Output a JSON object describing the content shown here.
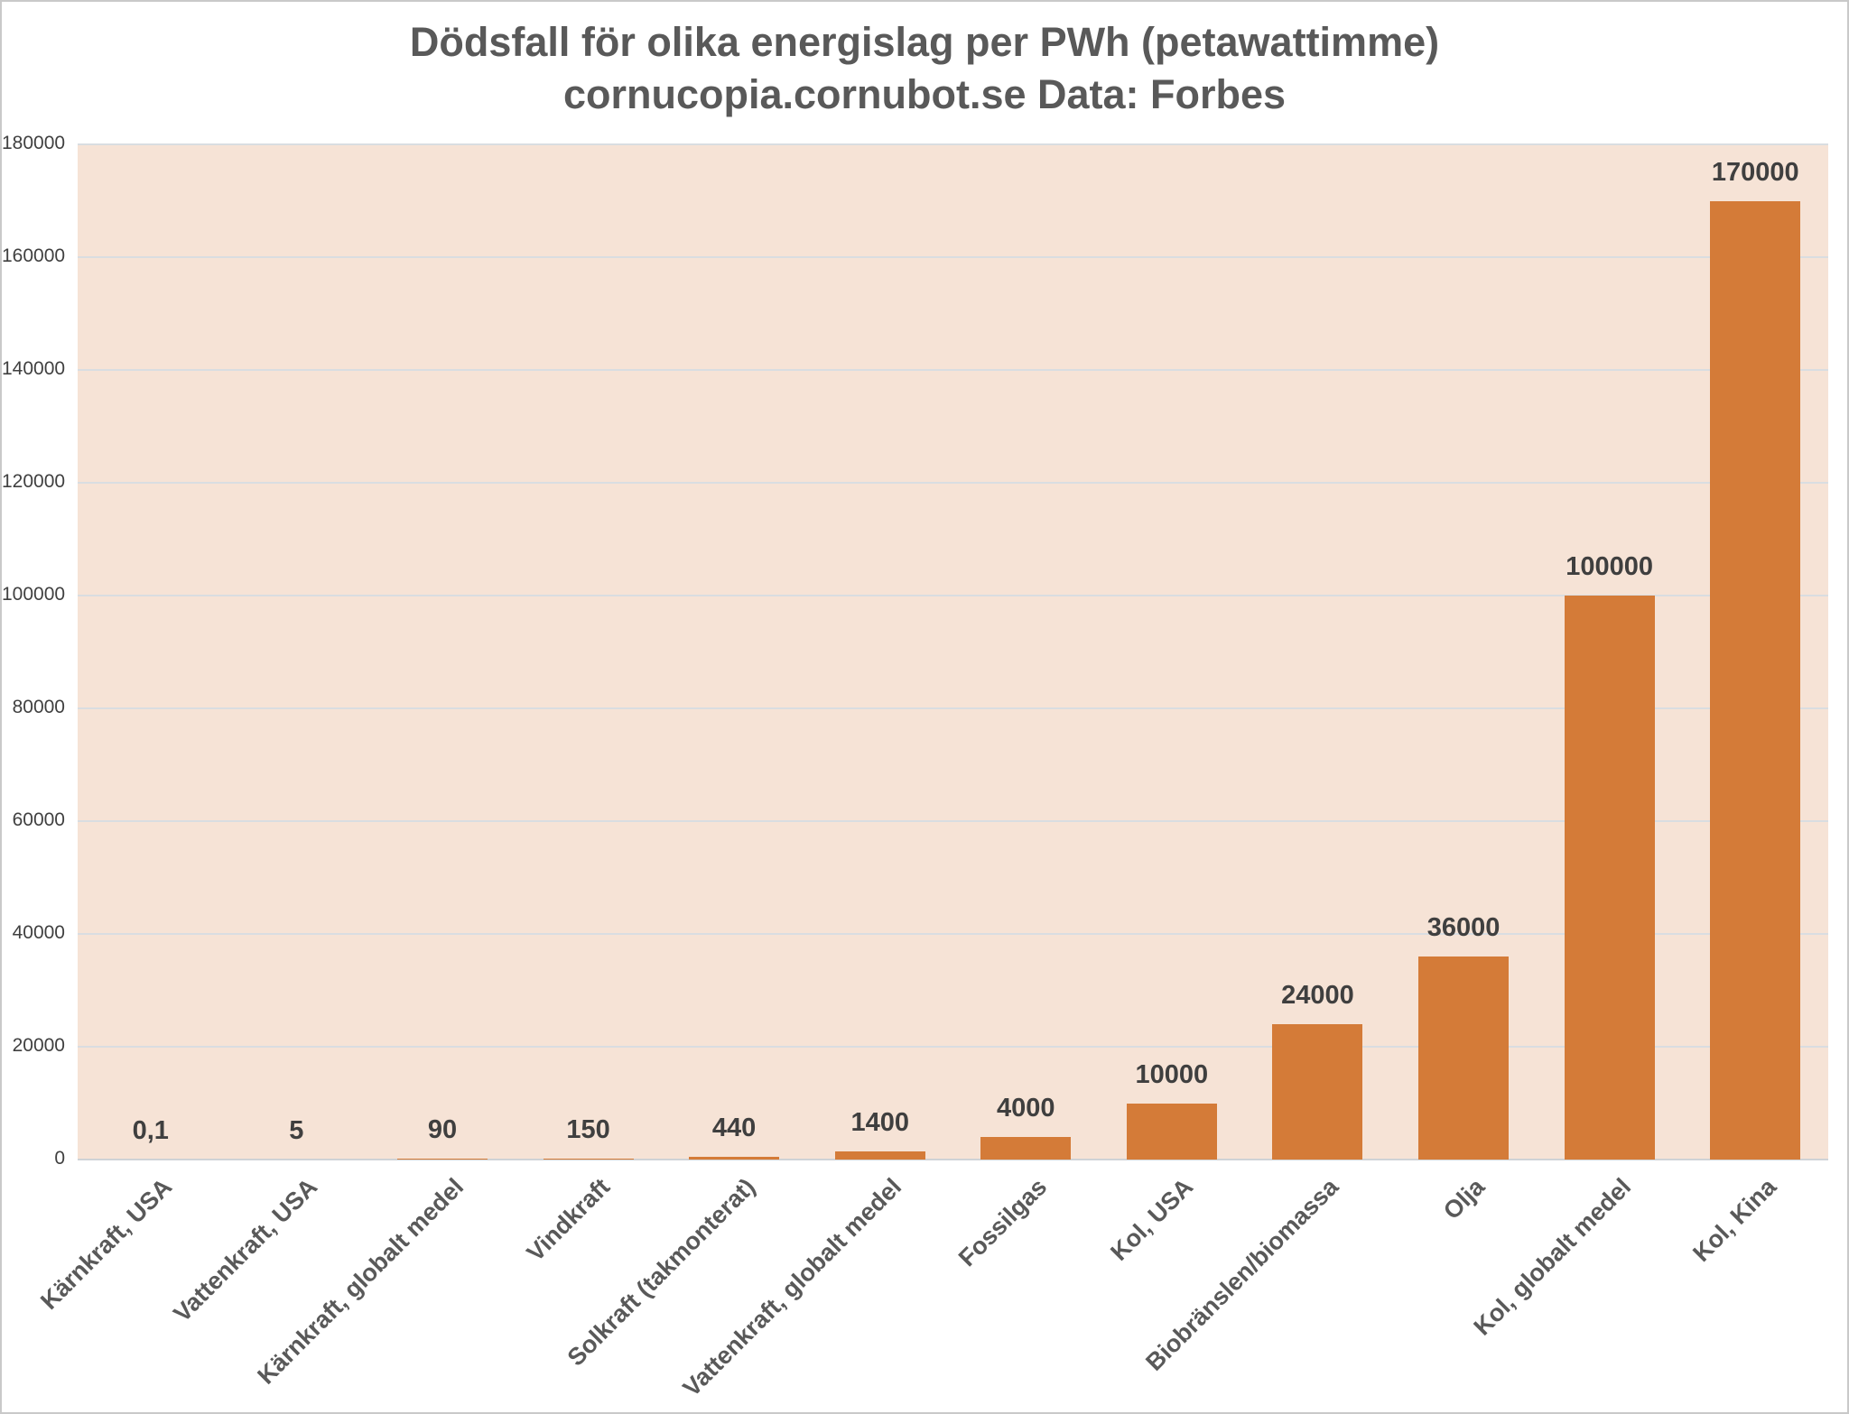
{
  "title": {
    "line1": "Dödsfall för olika energislag per PWh (petawattimme)",
    "line2": "cornucopia.cornubot.se Data: Forbes"
  },
  "chart_data": {
    "type": "bar",
    "title": "Dödsfall för olika energislag per PWh (petawattimme)",
    "subtitle": "cornucopia.cornubot.se Data: Forbes",
    "categories": [
      "Kärnkraft, USA",
      "Vattenkraft, USA",
      "Kärnkraft, globalt medel",
      "Vindkraft",
      "Solkraft (takmonterat)",
      "Vattenkraft, globalt medel",
      "Fossilgas",
      "Kol, USA",
      "Biobränslen/biomassa",
      "Olja",
      "Kol, globalt medel",
      "Kol, Kina"
    ],
    "values": [
      0.1,
      5,
      90,
      150,
      440,
      1400,
      4000,
      10000,
      24000,
      36000,
      100000,
      170000
    ],
    "value_labels": [
      "0,1",
      "5",
      "90",
      "150",
      "440",
      "1400",
      "4000",
      "10000",
      "24000",
      "36000",
      "100000",
      "170000"
    ],
    "y_ticks": [
      0,
      20000,
      40000,
      60000,
      80000,
      100000,
      120000,
      140000,
      160000,
      180000
    ],
    "y_tick_labels": [
      "0",
      "20000",
      "40000",
      "60000",
      "80000",
      "100000",
      "120000",
      "140000",
      "160000",
      "180000"
    ],
    "ylim": [
      0,
      180000
    ],
    "xlabel": "",
    "ylabel": "",
    "grid": true,
    "legend": "none",
    "colors": {
      "bar": "#d47b38",
      "plot_bg": "#f6e3d6",
      "gridline": "#d9dde1",
      "baseline": "#cfd3d7",
      "title_text": "#595959",
      "tick_text": "#404040",
      "value_text": "#3f3f3f",
      "category_text": "#595959"
    }
  }
}
